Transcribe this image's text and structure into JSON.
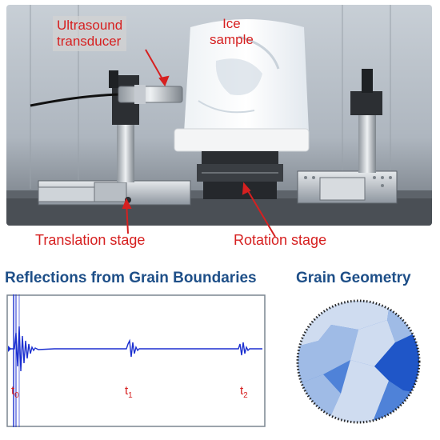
{
  "photo": {
    "labels": {
      "transducer_line1": "Ultrasound",
      "transducer_line2": "transducer",
      "ice_line1": "Ice",
      "ice_line2": "sample"
    },
    "stage_labels": {
      "translation": "Translation stage",
      "rotation": "Rotation stage"
    }
  },
  "sections": {
    "reflections_title": "Reflections from Grain Boundaries",
    "grain_title": "Grain Geometry"
  },
  "signal": {
    "time_markers": [
      {
        "base": "t",
        "sub": "0"
      },
      {
        "base": "t",
        "sub": "1"
      },
      {
        "base": "t",
        "sub": "2"
      }
    ],
    "trace_color": "#1b2fd0",
    "marker_color": "#d62020"
  },
  "grain": {
    "colors": {
      "dark": "#1f56c8",
      "medium": "#4f82d8",
      "light": "#9fbbe6",
      "pale": "#cfdcf0"
    }
  }
}
